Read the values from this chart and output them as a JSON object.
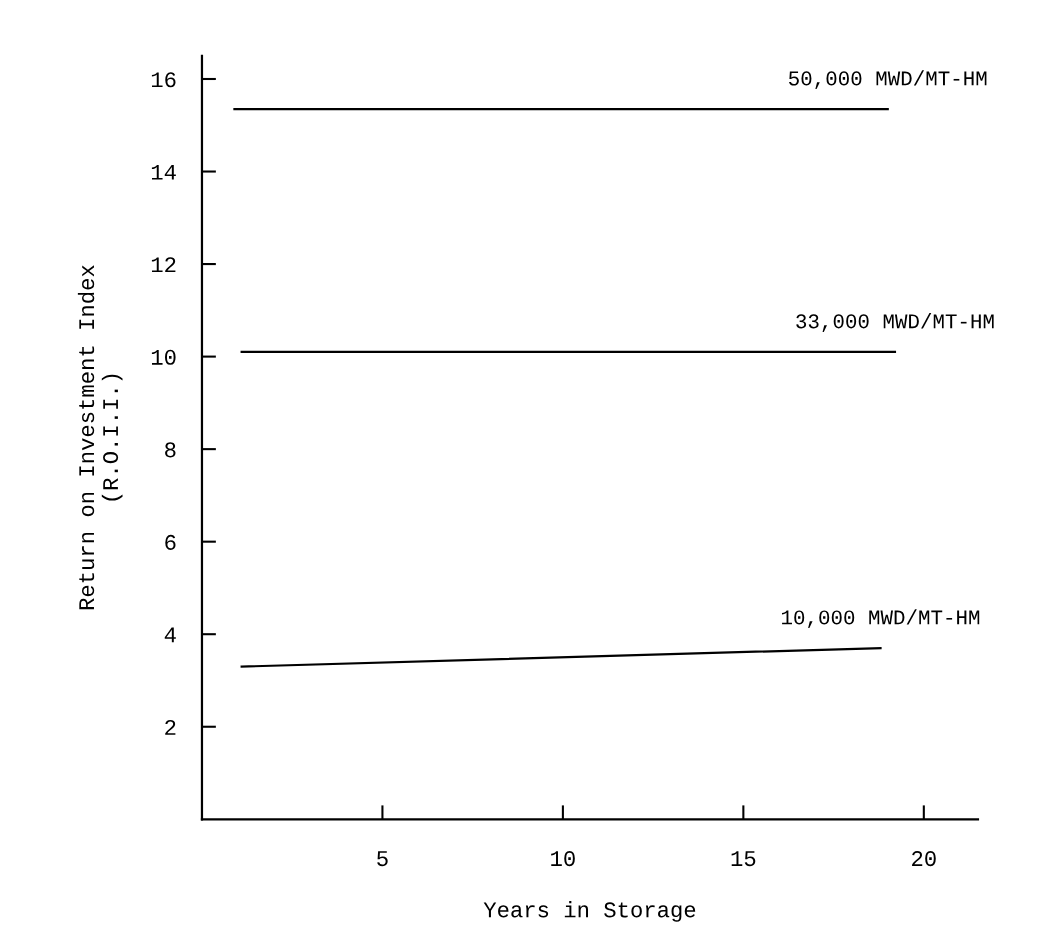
{
  "chart_data": {
    "type": "line",
    "xlabel": "Years in Storage",
    "ylabel": "Return on Investment Index\n(R.O.I.I.)",
    "series": [
      {
        "name": "50,000 MWD/MT-HM",
        "color": "#000000",
        "x": [
          0.9,
          19.0
        ],
        "values": [
          15.35,
          15.35
        ]
      },
      {
        "name": "33,000 MWD/MT-HM",
        "color": "#000000",
        "x": [
          1.1,
          19.2
        ],
        "values": [
          10.1,
          10.1
        ]
      },
      {
        "name": "10,000 MWD/MT-HM",
        "color": "#000000",
        "x": [
          1.1,
          18.8
        ],
        "values": [
          3.3,
          3.7
        ]
      }
    ],
    "xlim": [
      0,
      21.5
    ],
    "ylim": [
      0,
      16.5
    ],
    "xticks": [
      5,
      10,
      15,
      20
    ],
    "yticks": [
      2,
      4,
      6,
      8,
      10,
      12,
      14,
      16
    ],
    "grid": false,
    "legend": false,
    "marker": "none",
    "line_style": "solid"
  }
}
